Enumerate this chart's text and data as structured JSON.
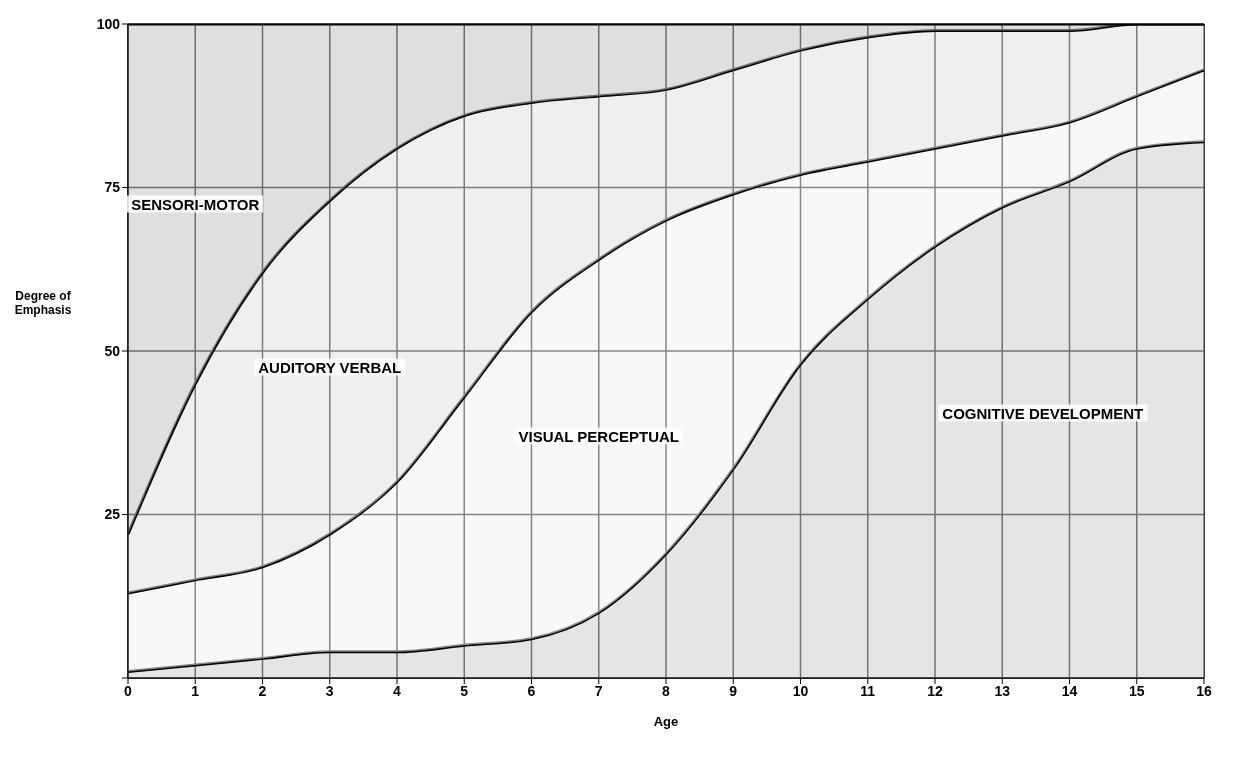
{
  "chart_data": {
    "type": "area",
    "stacked": true,
    "xlabel": "Age",
    "ylabel": "Degree of Emphasis",
    "x": [
      0,
      1,
      2,
      3,
      4,
      5,
      6,
      7,
      8,
      9,
      10,
      11,
      12,
      13,
      14,
      15,
      16
    ],
    "xlim": [
      0,
      16
    ],
    "xticks": [
      0,
      1,
      2,
      3,
      4,
      5,
      6,
      7,
      8,
      9,
      10,
      11,
      12,
      13,
      14,
      15,
      16
    ],
    "ylim": [
      0,
      100
    ],
    "yticks": [
      {
        "value": 0,
        "label": null
      },
      25,
      50,
      75,
      100
    ],
    "grid": true,
    "series": [
      {
        "name": "COGNITIVE DEVELOPMENT",
        "color": "#d0d0d0",
        "values": [
          1,
          2,
          3,
          4,
          4,
          5,
          6,
          10,
          19,
          32,
          48,
          58,
          66,
          72,
          76,
          81,
          82
        ]
      },
      {
        "name": "VISUAL PERCEPTUAL",
        "color": "#f2f2f2",
        "values": [
          12,
          13,
          14,
          18,
          26,
          38,
          50,
          54,
          51,
          42,
          29,
          21,
          15,
          11,
          9,
          8,
          11
        ]
      },
      {
        "name": "AUDITORY VERBAL",
        "color": "#e2e2e2",
        "values": [
          9,
          30,
          45,
          51,
          51,
          43,
          32,
          25,
          20,
          19,
          19,
          19,
          18,
          16,
          14,
          11,
          7
        ]
      },
      {
        "name": "SENSORI-MOTOR",
        "color": "#c4c4c4",
        "values": [
          78,
          55,
          38,
          27,
          19,
          14,
          12,
          11,
          10,
          7,
          4,
          2,
          1,
          1,
          1,
          0,
          0
        ]
      }
    ]
  }
}
